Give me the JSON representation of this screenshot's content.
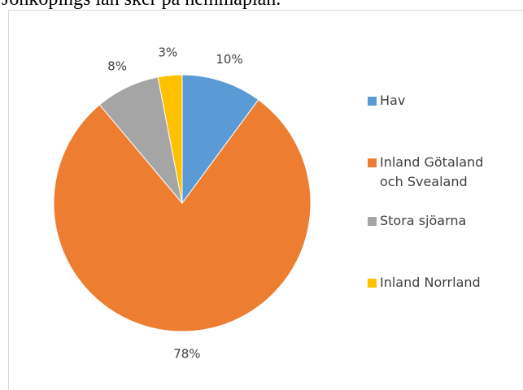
{
  "heading": "Jönköpings län sker på hemmaplan.",
  "chart_data": {
    "type": "pie",
    "categories": [
      "Hav",
      "Inland Götaland och Svealand",
      "Stora sjöarna",
      "Inland Norrland"
    ],
    "values": [
      10,
      78,
      8,
      3
    ],
    "value_labels": [
      "10%",
      "78%",
      "8%",
      "3%"
    ],
    "colors": [
      "#5b9bd5",
      "#ed7d31",
      "#a5a5a5",
      "#ffc000"
    ],
    "legend": "right"
  }
}
